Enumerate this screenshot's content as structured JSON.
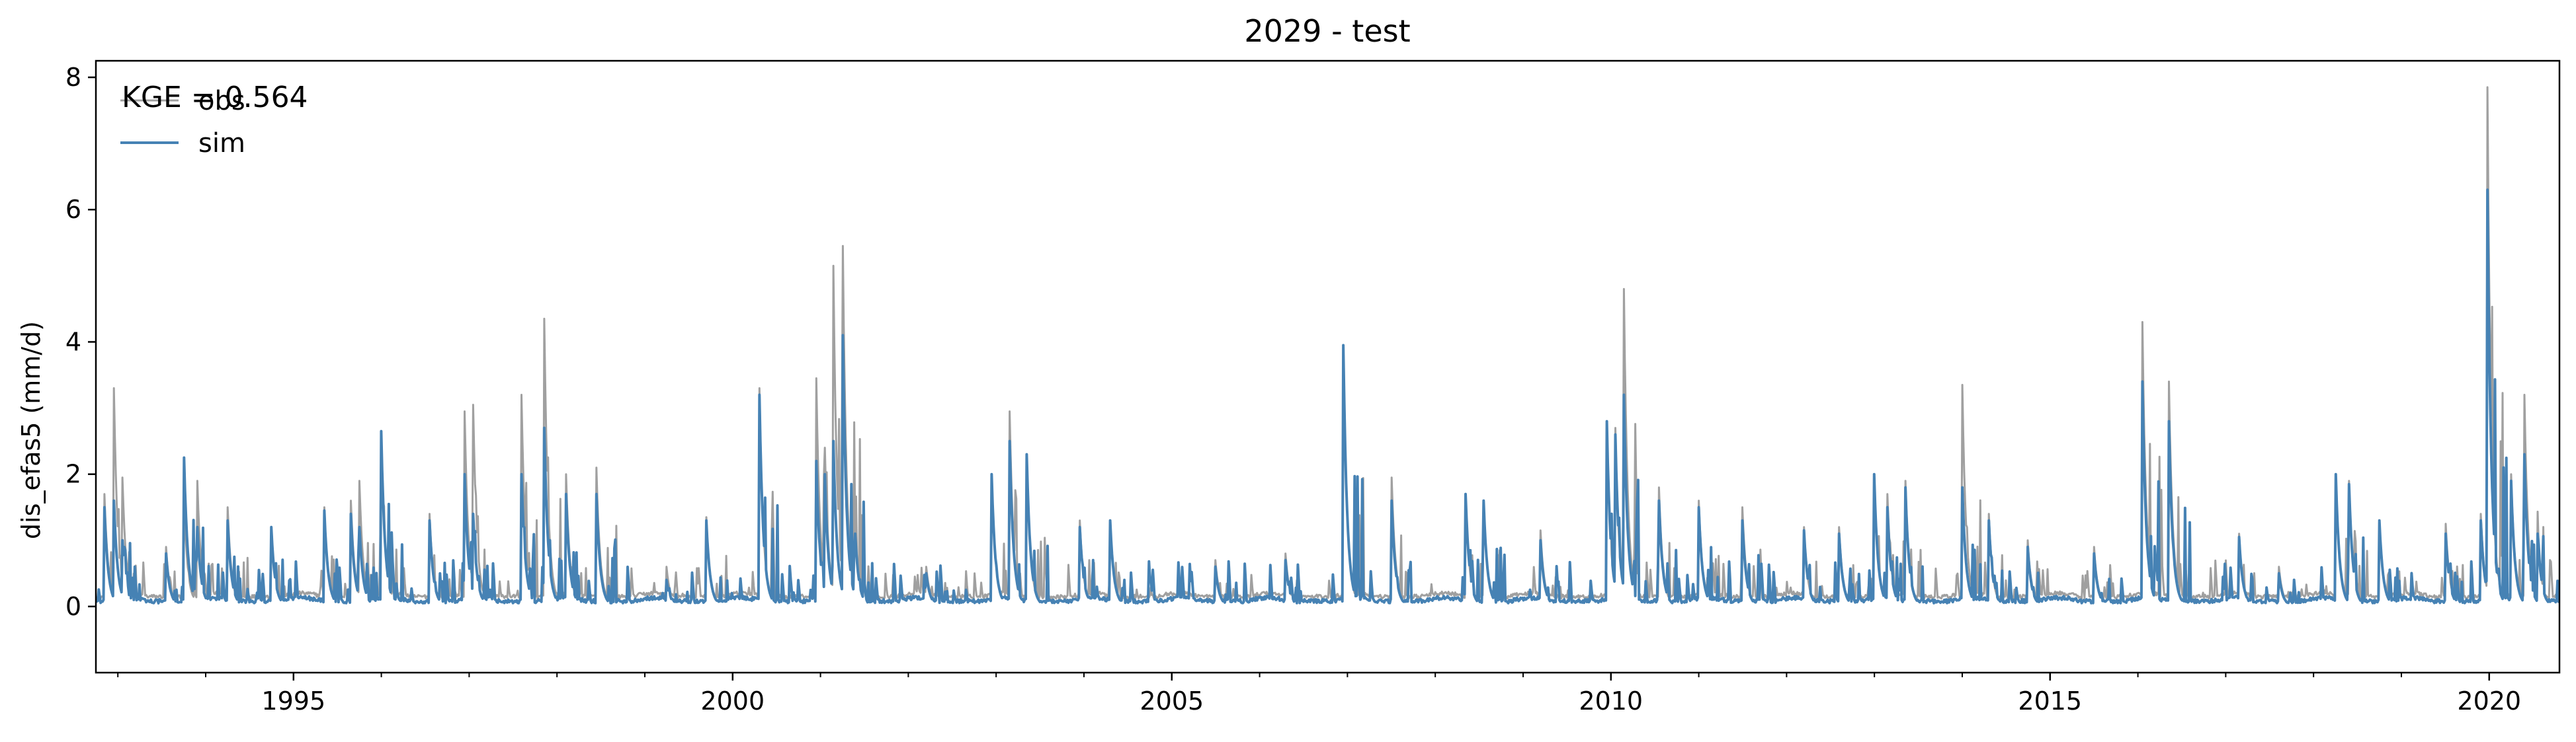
{
  "chart_data": {
    "type": "line",
    "title": "2029 - test",
    "xlabel": "",
    "ylabel": "dis_efas5 (mm/d)",
    "xlim": [
      1992.75,
      2020.8
    ],
    "ylim": [
      -1.0,
      8.25
    ],
    "x_ticks": [
      1995,
      2000,
      2005,
      2010,
      2015,
      2020
    ],
    "x_tick_labels": [
      "1995",
      "2000",
      "2005",
      "2010",
      "2015",
      "2020"
    ],
    "y_ticks": [
      0,
      2,
      4,
      6,
      8
    ],
    "y_tick_labels": [
      "0",
      "2",
      "4",
      "6",
      "8"
    ],
    "grid": false,
    "legend": {
      "placement": "top-left",
      "entries": [
        "obs",
        "sim"
      ]
    },
    "annotation": "KGE = 0.564",
    "series": [
      {
        "name": "obs",
        "color": "#a0a0a0",
        "baseline": 0.15,
        "peaks": [
          [
            1992.85,
            1.7
          ],
          [
            1992.95,
            3.3
          ],
          [
            1993.05,
            1.95
          ],
          [
            1993.55,
            0.9
          ],
          [
            1993.75,
            1.6
          ],
          [
            1993.9,
            1.9
          ],
          [
            1994.25,
            1.5
          ],
          [
            1994.75,
            1.2
          ],
          [
            1995.35,
            1.5
          ],
          [
            1995.65,
            1.6
          ],
          [
            1995.75,
            1.9
          ],
          [
            1996.0,
            2.6
          ],
          [
            1996.55,
            1.4
          ],
          [
            1996.95,
            2.95
          ],
          [
            1997.05,
            3.05
          ],
          [
            1997.6,
            3.2
          ],
          [
            1997.85,
            4.35
          ],
          [
            1998.1,
            2.0
          ],
          [
            1998.45,
            2.1
          ],
          [
            1999.25,
            0.6
          ],
          [
            1999.7,
            1.35
          ],
          [
            2000.3,
            3.3
          ],
          [
            2000.95,
            3.45
          ],
          [
            2001.05,
            2.4
          ],
          [
            2001.15,
            5.15
          ],
          [
            2001.25,
            5.45
          ],
          [
            2001.4,
            1.1
          ],
          [
            2002.2,
            0.6
          ],
          [
            2002.95,
            2.0
          ],
          [
            2003.15,
            2.95
          ],
          [
            2003.35,
            2.3
          ],
          [
            2003.95,
            1.3
          ],
          [
            2004.3,
            1.3
          ],
          [
            2005.5,
            0.7
          ],
          [
            2006.3,
            0.8
          ],
          [
            2006.95,
            3.95
          ],
          [
            2007.5,
            1.95
          ],
          [
            2008.35,
            1.7
          ],
          [
            2008.55,
            1.6
          ],
          [
            2009.2,
            1.15
          ],
          [
            2009.95,
            2.75
          ],
          [
            2010.05,
            2.7
          ],
          [
            2010.15,
            4.8
          ],
          [
            2010.55,
            1.8
          ],
          [
            2011.0,
            1.6
          ],
          [
            2011.5,
            1.5
          ],
          [
            2012.2,
            1.2
          ],
          [
            2012.6,
            1.2
          ],
          [
            2013.0,
            2.0
          ],
          [
            2013.15,
            1.7
          ],
          [
            2013.35,
            1.9
          ],
          [
            2014.0,
            3.35
          ],
          [
            2014.3,
            1.4
          ],
          [
            2014.75,
            1.0
          ],
          [
            2015.5,
            0.9
          ],
          [
            2016.05,
            4.3
          ],
          [
            2016.35,
            3.4
          ],
          [
            2017.15,
            1.1
          ],
          [
            2017.6,
            0.6
          ],
          [
            2018.25,
            2.0
          ],
          [
            2018.4,
            1.9
          ],
          [
            2018.75,
            1.3
          ],
          [
            2019.5,
            1.25
          ],
          [
            2019.9,
            1.4
          ],
          [
            2019.98,
            7.85
          ],
          [
            2020.25,
            2.0
          ],
          [
            2020.4,
            3.2
          ],
          [
            2020.55,
            1.2
          ]
        ]
      },
      {
        "name": "sim",
        "color": "#4682b4",
        "baseline": 0.08,
        "peaks": [
          [
            1992.85,
            1.5
          ],
          [
            1992.95,
            1.6
          ],
          [
            1993.05,
            1.0
          ],
          [
            1993.55,
            0.8
          ],
          [
            1993.75,
            2.25
          ],
          [
            1993.9,
            1.2
          ],
          [
            1994.25,
            1.3
          ],
          [
            1994.75,
            1.2
          ],
          [
            1995.35,
            1.45
          ],
          [
            1995.65,
            1.4
          ],
          [
            1995.75,
            1.2
          ],
          [
            1996.0,
            2.65
          ],
          [
            1996.55,
            1.3
          ],
          [
            1996.95,
            2.0
          ],
          [
            1997.05,
            1.4
          ],
          [
            1997.6,
            2.0
          ],
          [
            1997.85,
            2.7
          ],
          [
            1998.1,
            1.7
          ],
          [
            1998.45,
            1.7
          ],
          [
            1999.25,
            0.4
          ],
          [
            1999.7,
            1.3
          ],
          [
            2000.3,
            3.2
          ],
          [
            2000.95,
            2.2
          ],
          [
            2001.05,
            2.0
          ],
          [
            2001.15,
            2.5
          ],
          [
            2001.25,
            4.1
          ],
          [
            2001.4,
            1.1
          ],
          [
            2002.2,
            0.5
          ],
          [
            2002.95,
            2.0
          ],
          [
            2003.15,
            2.5
          ],
          [
            2003.35,
            2.3
          ],
          [
            2003.95,
            1.2
          ],
          [
            2004.3,
            1.3
          ],
          [
            2005.5,
            0.6
          ],
          [
            2006.3,
            0.7
          ],
          [
            2006.95,
            3.95
          ],
          [
            2007.5,
            1.6
          ],
          [
            2008.35,
            1.7
          ],
          [
            2008.55,
            1.6
          ],
          [
            2009.2,
            1.0
          ],
          [
            2009.95,
            2.8
          ],
          [
            2010.05,
            2.6
          ],
          [
            2010.15,
            3.2
          ],
          [
            2010.55,
            1.6
          ],
          [
            2011.0,
            1.5
          ],
          [
            2011.5,
            1.3
          ],
          [
            2012.2,
            1.15
          ],
          [
            2012.6,
            1.1
          ],
          [
            2013.0,
            2.0
          ],
          [
            2013.15,
            1.5
          ],
          [
            2013.35,
            1.8
          ],
          [
            2014.0,
            1.8
          ],
          [
            2014.3,
            1.3
          ],
          [
            2014.75,
            0.9
          ],
          [
            2015.5,
            0.8
          ],
          [
            2016.05,
            3.4
          ],
          [
            2016.35,
            2.8
          ],
          [
            2017.15,
            1.05
          ],
          [
            2017.6,
            0.5
          ],
          [
            2018.25,
            2.0
          ],
          [
            2018.4,
            1.85
          ],
          [
            2018.75,
            1.3
          ],
          [
            2019.5,
            1.1
          ],
          [
            2019.9,
            1.3
          ],
          [
            2019.98,
            6.3
          ],
          [
            2020.25,
            1.9
          ],
          [
            2020.4,
            2.3
          ],
          [
            2020.55,
            1.1
          ]
        ]
      }
    ]
  }
}
